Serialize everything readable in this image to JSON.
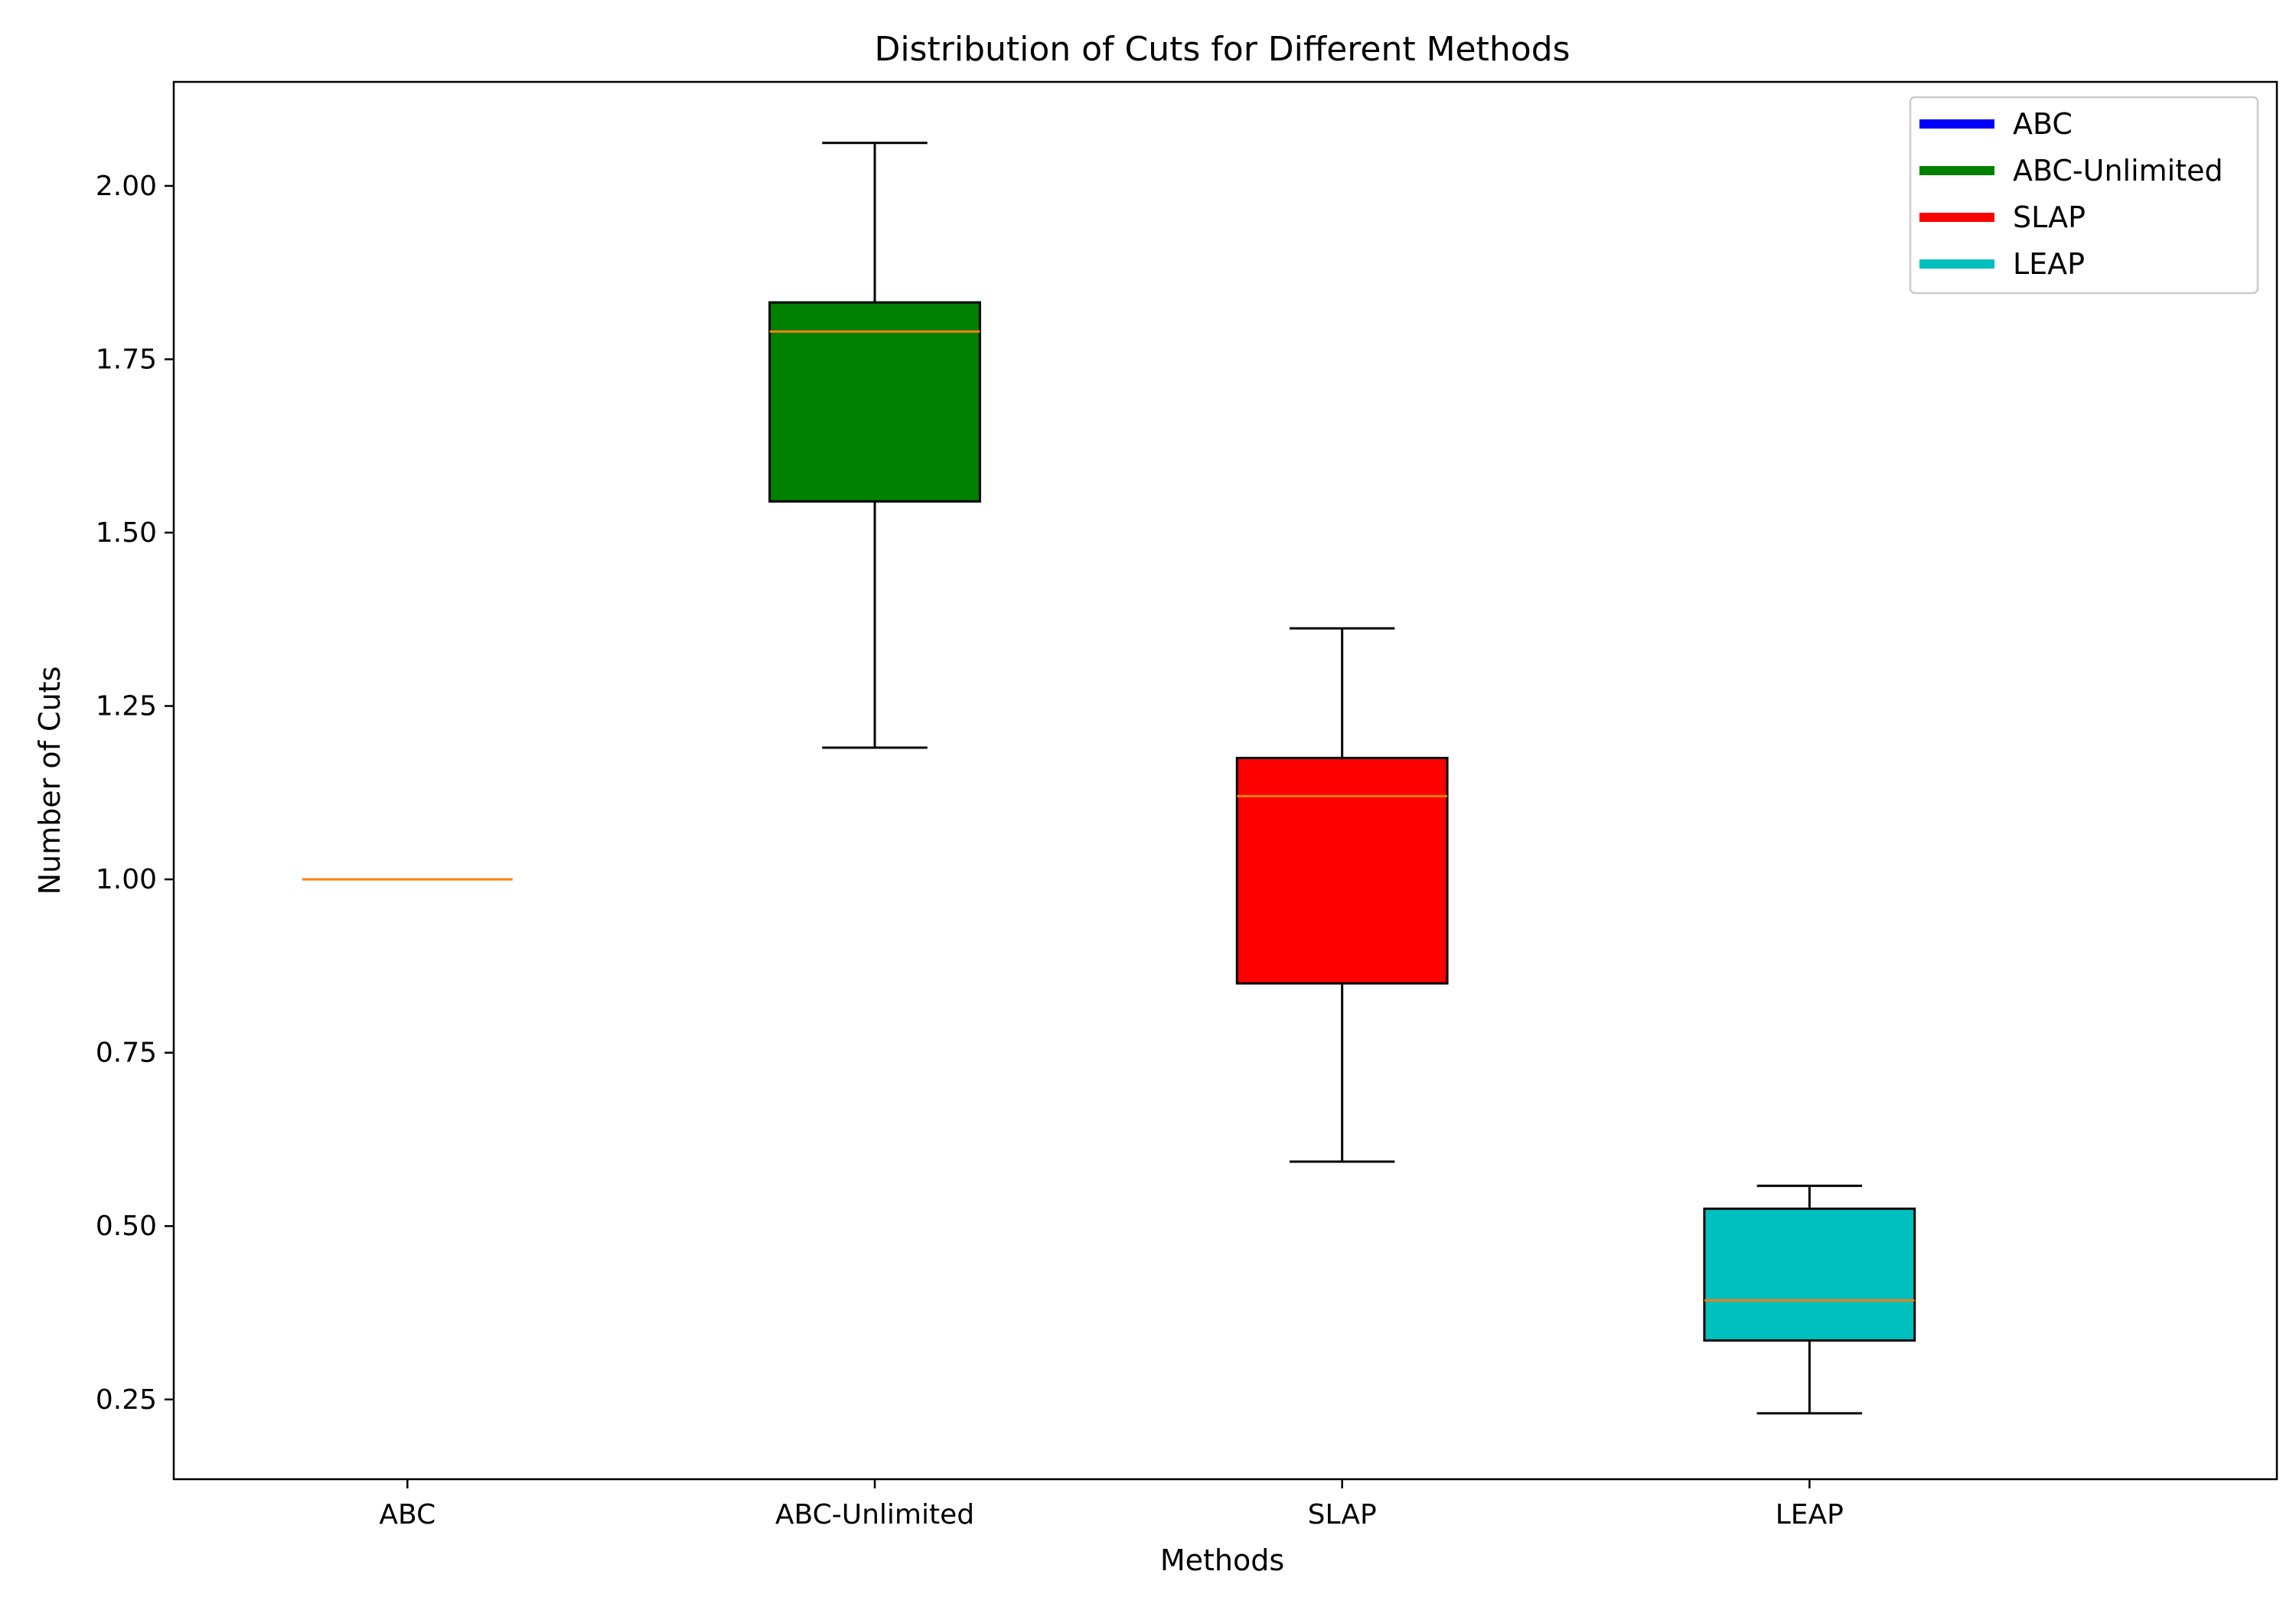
{
  "chart_data": {
    "type": "box",
    "title": "Distribution of Cuts for Different Methods",
    "xlabel": "Methods",
    "ylabel": "Number of Cuts",
    "ylim": [
      0.135,
      2.15
    ],
    "yticks": [
      "0.25",
      "0.50",
      "0.75",
      "1.00",
      "1.25",
      "1.50",
      "1.75",
      "2.00"
    ],
    "ytick_values": [
      0.25,
      0.5,
      0.75,
      1.0,
      1.25,
      1.5,
      1.75,
      2.0
    ],
    "categories": [
      "ABC",
      "ABC-Unlimited",
      "SLAP",
      "LEAP"
    ],
    "median_color": "#ff7f0e",
    "boxes": [
      {
        "name": "ABC",
        "color": "#0000ff",
        "whisker_low": 1.0,
        "q1": 1.0,
        "median": 1.0,
        "q3": 1.0,
        "whisker_high": 1.0
      },
      {
        "name": "ABC-Unlimited",
        "color": "#008000",
        "whisker_low": 1.19,
        "q1": 1.545,
        "median": 1.79,
        "q3": 1.832,
        "whisker_high": 2.062
      },
      {
        "name": "SLAP",
        "color": "#ff0000",
        "whisker_low": 0.593,
        "q1": 0.85,
        "median": 1.12,
        "q3": 1.175,
        "whisker_high": 1.362
      },
      {
        "name": "LEAP",
        "color": "#00bfbf",
        "whisker_low": 0.23,
        "q1": 0.335,
        "median": 0.393,
        "q3": 0.525,
        "whisker_high": 0.558
      }
    ],
    "legend": {
      "position": "top-right",
      "entries": [
        {
          "label": "ABC",
          "color": "#0000ff"
        },
        {
          "label": "ABC-Unlimited",
          "color": "#008000"
        },
        {
          "label": "SLAP",
          "color": "#ff0000"
        },
        {
          "label": "LEAP",
          "color": "#00bfbf"
        }
      ]
    },
    "grid": false
  }
}
